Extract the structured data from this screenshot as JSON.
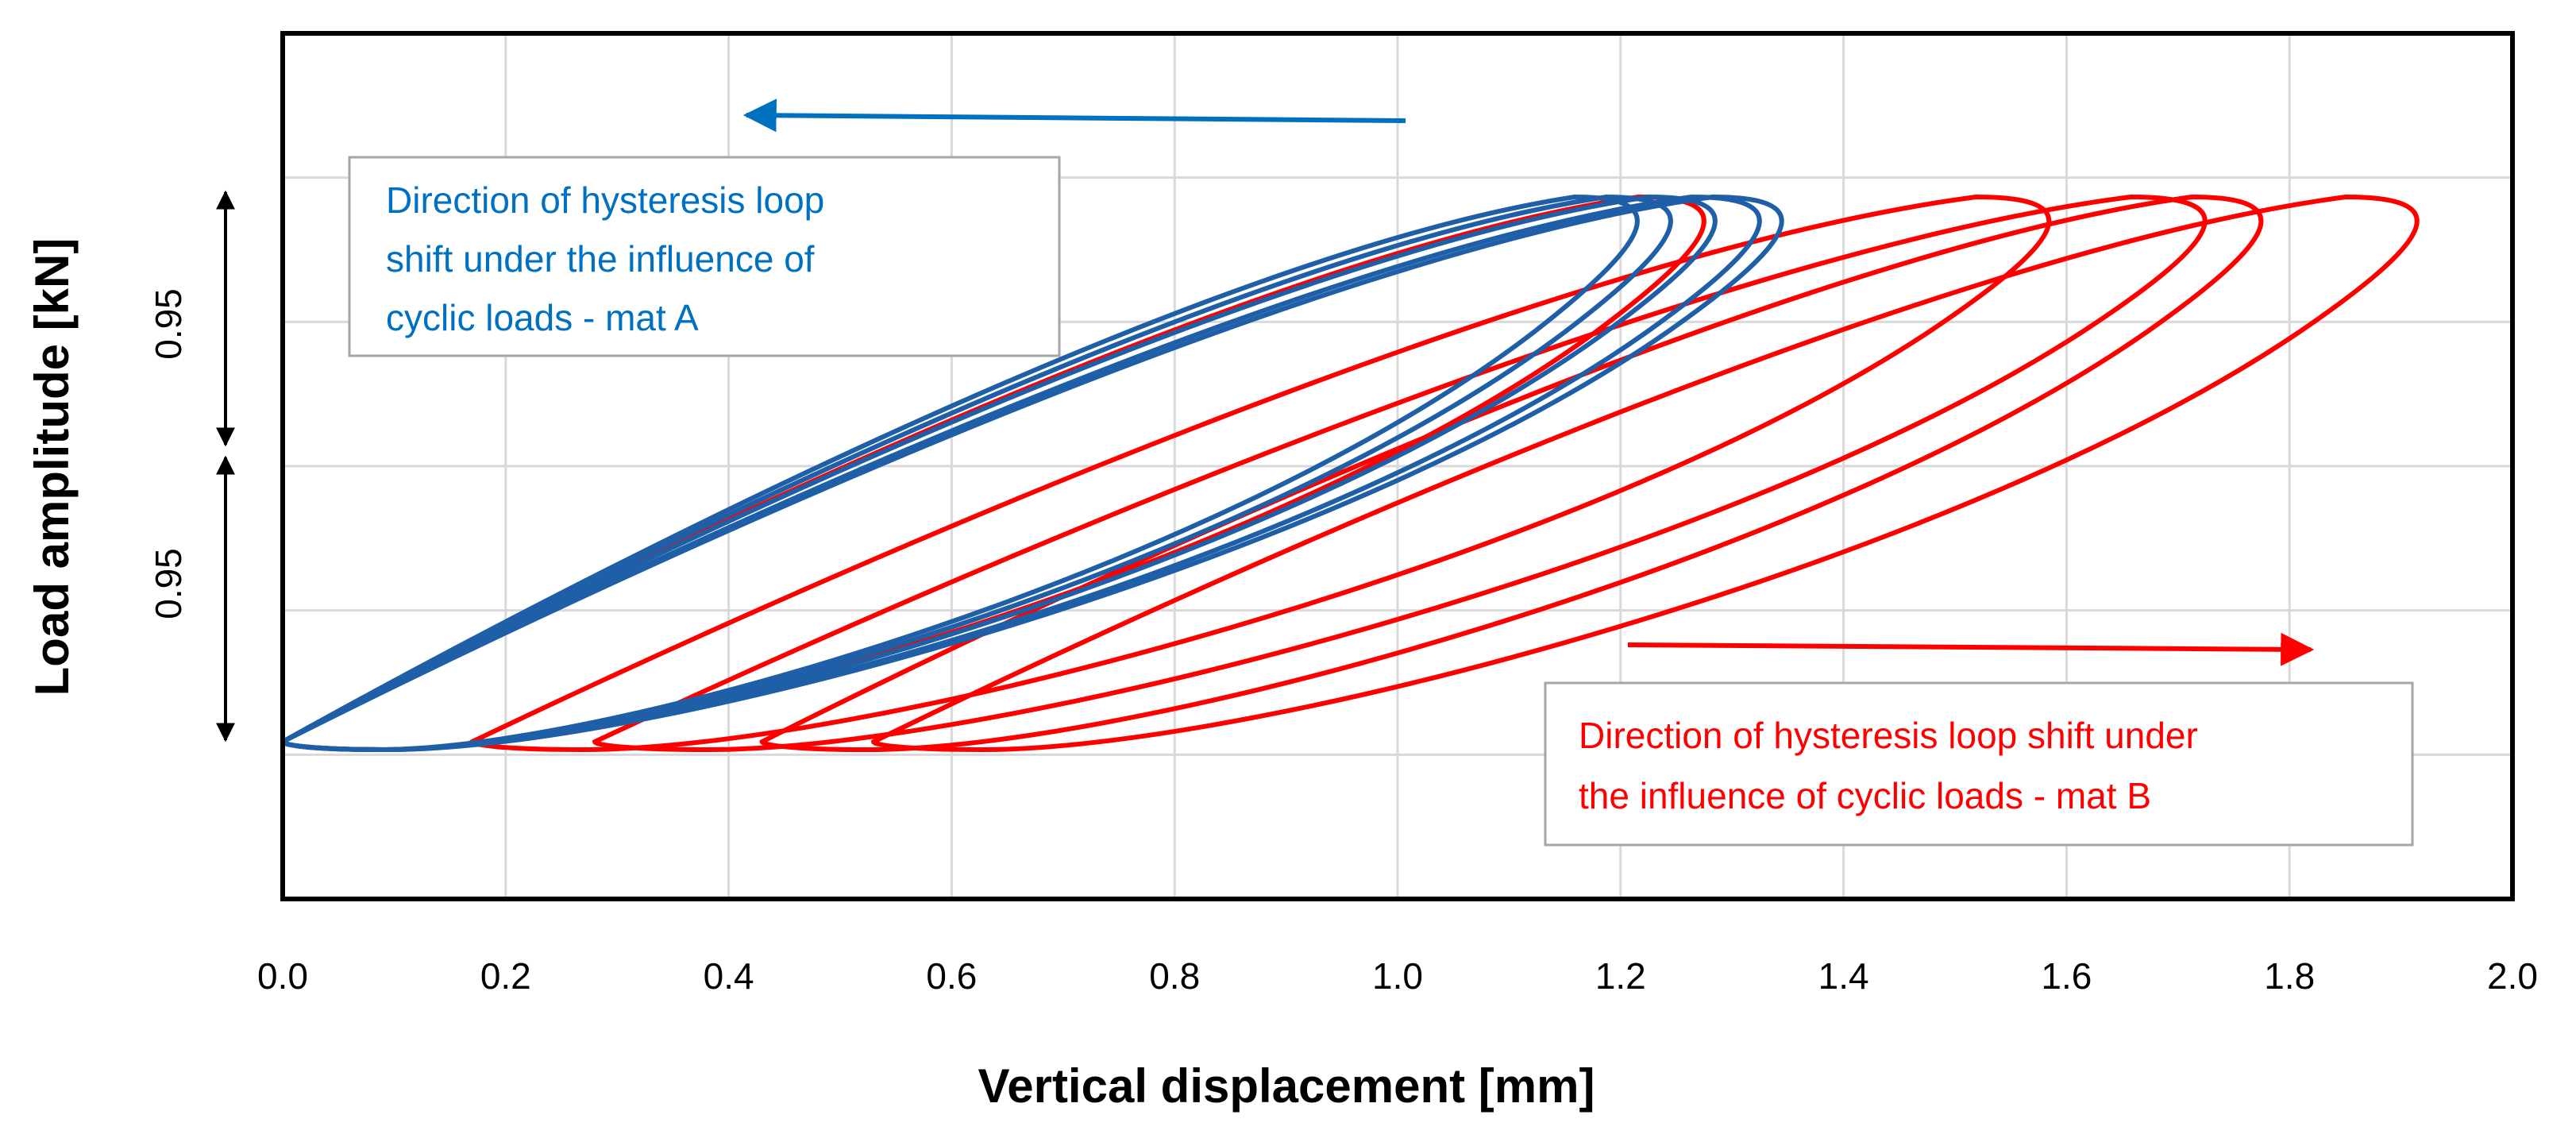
{
  "chart_data": {
    "type": "line",
    "title": "",
    "xlabel": "Vertical displacement [mm]",
    "ylabel": "Load amplitude [kN]",
    "xlim": [
      0.0,
      2.0
    ],
    "x_ticks": [
      "0.0",
      "0.2",
      "0.4",
      "0.6",
      "0.8",
      "1.0",
      "1.2",
      "1.4",
      "1.6",
      "1.8",
      "2.0"
    ],
    "grid": true,
    "legend": "none",
    "amplitude_markers": [
      "0.95",
      "0.95"
    ],
    "series_groups": [
      {
        "group": "mat A",
        "color": "#1f5fa8",
        "loops": [
          {
            "x_min": 0.0,
            "x_max": 1.22
          },
          {
            "x_min": 0.0,
            "x_max": 1.25
          },
          {
            "x_min": 0.0,
            "x_max": 1.29
          },
          {
            "x_min": 0.0,
            "x_max": 1.33
          },
          {
            "x_min": 0.0,
            "x_max": 1.35
          }
        ]
      },
      {
        "group": "mat B",
        "color": "#ff0000",
        "loops": [
          {
            "x_min": 0.0,
            "x_max": 1.28
          },
          {
            "x_min": 0.17,
            "x_max": 1.59
          },
          {
            "x_min": 0.28,
            "x_max": 1.73
          },
          {
            "x_min": 0.43,
            "x_max": 1.78
          },
          {
            "x_min": 0.53,
            "x_max": 1.92
          }
        ]
      }
    ],
    "annotations": [
      {
        "id": "mat-a",
        "lines": [
          "Direction of hysteresis loop",
          "shift under the influence of",
          "cyclic loads - mat A"
        ],
        "color": "#0070c0",
        "arrow_direction": "left"
      },
      {
        "id": "mat-b",
        "lines": [
          "Direction of hysteresis loop shift under",
          "the influence of cyclic loads - mat B"
        ],
        "color": "#ff0000",
        "arrow_direction": "right"
      }
    ]
  }
}
